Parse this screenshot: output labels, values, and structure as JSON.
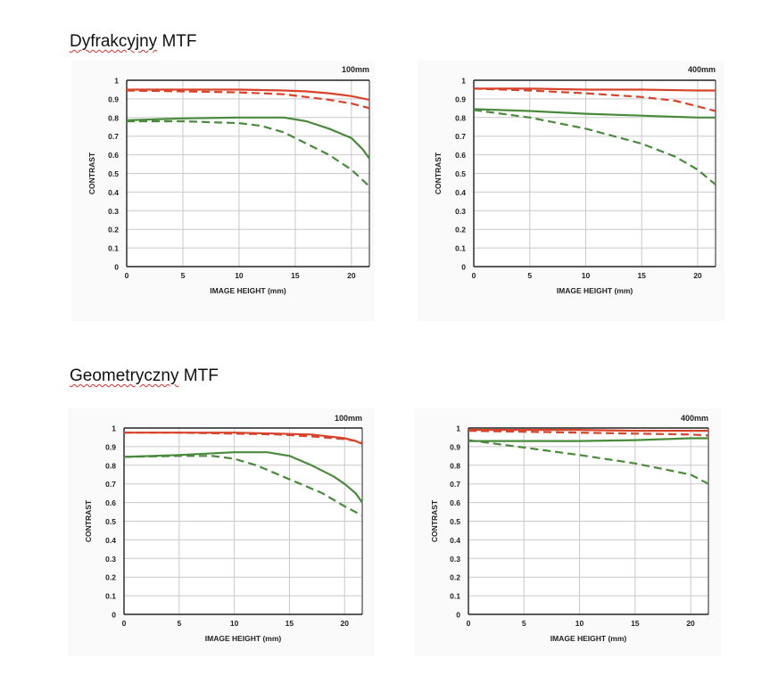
{
  "sections": [
    {
      "title_word1": "Dyfrakcyjny",
      "title_word2": "MTF"
    },
    {
      "title_word1": "Geometryczny",
      "title_word2": "MTF"
    }
  ],
  "colors": {
    "sagittal_red": "#d9432a",
    "green": "#4a8a3c",
    "grid": "#c9c9c9",
    "axis": "#222222"
  },
  "chart_data": [
    {
      "type": "line",
      "section": "Dyfrakcyjny MTF",
      "focal_label": "100mm",
      "xlabel": "IMAGE HEIGHT (mm)",
      "ylabel": "CONTRAST",
      "xlim": [
        0,
        21.6
      ],
      "ylim": [
        0,
        1
      ],
      "xticks": [
        0,
        5,
        10,
        15,
        20
      ],
      "yticks": [
        "0",
        "0.1",
        "0.2",
        "0.3",
        "0.4",
        "0.5",
        "0.6",
        "0.7",
        "0.8",
        "0.9",
        "1"
      ],
      "grid": true,
      "series": [
        {
          "color": "red",
          "dash": false,
          "x": [
            0,
            5,
            10,
            14,
            16,
            18,
            20,
            21.6
          ],
          "y": [
            0.95,
            0.95,
            0.95,
            0.945,
            0.94,
            0.93,
            0.915,
            0.895
          ]
        },
        {
          "color": "red",
          "dash": true,
          "x": [
            0,
            5,
            10,
            14,
            16,
            18,
            20,
            21.6
          ],
          "y": [
            0.945,
            0.94,
            0.935,
            0.925,
            0.91,
            0.895,
            0.875,
            0.85
          ]
        },
        {
          "color": "green",
          "dash": false,
          "x": [
            0,
            5,
            10,
            14,
            16,
            18,
            20,
            21,
            21.6
          ],
          "y": [
            0.785,
            0.795,
            0.8,
            0.8,
            0.78,
            0.74,
            0.69,
            0.63,
            0.58
          ]
        },
        {
          "color": "green",
          "dash": true,
          "x": [
            0,
            5,
            10,
            12,
            14,
            16,
            18,
            20,
            21.6
          ],
          "y": [
            0.78,
            0.78,
            0.77,
            0.755,
            0.72,
            0.66,
            0.6,
            0.52,
            0.43
          ]
        }
      ]
    },
    {
      "type": "line",
      "section": "Dyfrakcyjny MTF",
      "focal_label": "400mm",
      "xlabel": "IMAGE HEIGHT (mm)",
      "ylabel": "CONTRAST",
      "xlim": [
        0,
        21.6
      ],
      "ylim": [
        0,
        1
      ],
      "xticks": [
        0,
        5,
        10,
        15,
        20
      ],
      "yticks": [
        "0",
        "0.1",
        "0.2",
        "0.3",
        "0.4",
        "0.5",
        "0.6",
        "0.7",
        "0.8",
        "0.9",
        "1"
      ],
      "grid": true,
      "series": [
        {
          "color": "red",
          "dash": false,
          "x": [
            0,
            5,
            10,
            15,
            20,
            21.6
          ],
          "y": [
            0.955,
            0.955,
            0.95,
            0.95,
            0.945,
            0.945
          ]
        },
        {
          "color": "red",
          "dash": true,
          "x": [
            0,
            5,
            10,
            15,
            18,
            20,
            21.6
          ],
          "y": [
            0.955,
            0.945,
            0.93,
            0.91,
            0.89,
            0.86,
            0.835
          ]
        },
        {
          "color": "green",
          "dash": false,
          "x": [
            0,
            5,
            10,
            15,
            20,
            21.6
          ],
          "y": [
            0.845,
            0.835,
            0.82,
            0.81,
            0.8,
            0.8
          ]
        },
        {
          "color": "green",
          "dash": true,
          "x": [
            0,
            5,
            10,
            15,
            18,
            20,
            21.6
          ],
          "y": [
            0.84,
            0.8,
            0.74,
            0.66,
            0.59,
            0.52,
            0.44
          ]
        }
      ]
    },
    {
      "type": "line",
      "section": "Geometryczny MTF",
      "focal_label": "100mm",
      "xlabel": "IMAGE HEIGHT (mm)",
      "ylabel": "CONTRAST",
      "xlim": [
        0,
        21.6
      ],
      "ylim": [
        0,
        1
      ],
      "xticks": [
        0,
        5,
        10,
        15,
        20
      ],
      "yticks": [
        "0",
        "0.1",
        "0.2",
        "0.3",
        "0.4",
        "0.5",
        "0.6",
        "0.7",
        "0.8",
        "0.9",
        "1"
      ],
      "grid": true,
      "series": [
        {
          "color": "red",
          "dash": false,
          "x": [
            0,
            5,
            10,
            14,
            17,
            20,
            21,
            21.6
          ],
          "y": [
            0.975,
            0.975,
            0.975,
            0.97,
            0.965,
            0.945,
            0.93,
            0.915
          ]
        },
        {
          "color": "red",
          "dash": true,
          "x": [
            0,
            5,
            10,
            14,
            17,
            20,
            21.6
          ],
          "y": [
            0.975,
            0.975,
            0.97,
            0.965,
            0.955,
            0.94,
            0.925
          ]
        },
        {
          "color": "green",
          "dash": false,
          "x": [
            0,
            5,
            10,
            13,
            15,
            17,
            19,
            20,
            21,
            21.6
          ],
          "y": [
            0.845,
            0.855,
            0.87,
            0.87,
            0.85,
            0.8,
            0.74,
            0.7,
            0.65,
            0.6
          ]
        },
        {
          "color": "green",
          "dash": true,
          "x": [
            0,
            5,
            8,
            10,
            12,
            14,
            16,
            18,
            20,
            21.6
          ],
          "y": [
            0.845,
            0.85,
            0.85,
            0.835,
            0.8,
            0.75,
            0.7,
            0.65,
            0.58,
            0.53
          ]
        }
      ]
    },
    {
      "type": "line",
      "section": "Geometryczny MTF",
      "focal_label": "400mm",
      "xlabel": "IMAGE HEIGHT (mm)",
      "ylabel": "CONTRAST",
      "xlim": [
        0,
        21.6
      ],
      "ylim": [
        0,
        1
      ],
      "xticks": [
        0,
        5,
        10,
        15,
        20
      ],
      "yticks": [
        "0",
        "0.1",
        "0.2",
        "0.3",
        "0.4",
        "0.5",
        "0.6",
        "0.7",
        "0.8",
        "0.9",
        "1"
      ],
      "grid": true,
      "series": [
        {
          "color": "red",
          "dash": false,
          "x": [
            0,
            5,
            10,
            15,
            20,
            21.6
          ],
          "y": [
            0.99,
            0.99,
            0.99,
            0.985,
            0.985,
            0.985
          ]
        },
        {
          "color": "red",
          "dash": true,
          "x": [
            0,
            5,
            10,
            15,
            20,
            21.6
          ],
          "y": [
            0.985,
            0.98,
            0.975,
            0.97,
            0.965,
            0.96
          ]
        },
        {
          "color": "green",
          "dash": false,
          "x": [
            0,
            5,
            10,
            15,
            20,
            21.6
          ],
          "y": [
            0.93,
            0.93,
            0.93,
            0.935,
            0.945,
            0.945
          ]
        },
        {
          "color": "green",
          "dash": true,
          "x": [
            0,
            5,
            10,
            15,
            20,
            21.6
          ],
          "y": [
            0.935,
            0.895,
            0.855,
            0.81,
            0.75,
            0.7
          ]
        }
      ]
    }
  ]
}
